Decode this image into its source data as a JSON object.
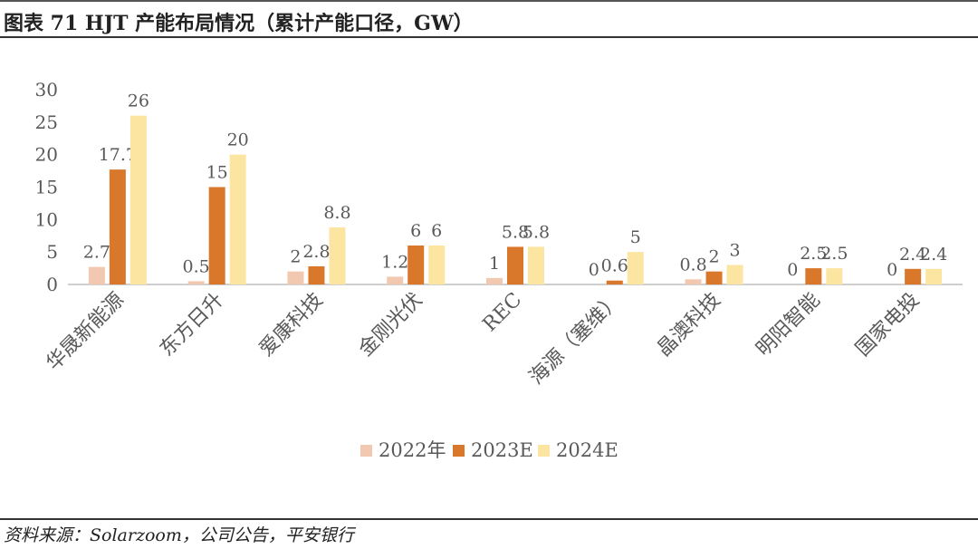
{
  "header": {
    "title": "图表 71    HJT 产能布局情况（累计产能口径，GW）"
  },
  "footer": {
    "source": "资料来源：Solarzoom，公司公告，平安银行"
  },
  "colors": {
    "s2022": "#F2C9B0",
    "s2023E": "#D9772B",
    "s2024E": "#FBE5A0",
    "axis": "#bfbfbf",
    "text": "#595959"
  },
  "chart_data": {
    "type": "bar",
    "title": "HJT 产能布局情况（累计产能口径，GW）",
    "xlabel": "",
    "ylabel": "",
    "ylim": [
      0,
      30
    ],
    "yticks": [
      0,
      5,
      10,
      15,
      20,
      25,
      30
    ],
    "grid": false,
    "legend_position": "bottom",
    "categories": [
      "华晟新能源",
      "东方日升",
      "爱康科技",
      "金刚光伏",
      "REC",
      "海源（塞维）",
      "晶澳科技",
      "明阳智能",
      "国家电投"
    ],
    "series": [
      {
        "name": "2022年",
        "values": [
          2.7,
          0.5,
          2,
          1.2,
          1,
          0,
          0.8,
          0,
          0
        ],
        "labels": [
          "2.7",
          "0.5",
          "2",
          "1.2",
          "1",
          "0",
          "0.8",
          "0",
          "0"
        ]
      },
      {
        "name": "2023E",
        "values": [
          17.7,
          15,
          2.8,
          6,
          5.8,
          0.6,
          2,
          2.5,
          2.4
        ],
        "labels": [
          "17.7",
          "15",
          "2.8",
          "6",
          "5.8",
          "0.6",
          "2",
          "2.5",
          "2.4"
        ]
      },
      {
        "name": "2024E",
        "values": [
          26,
          20,
          8.8,
          6,
          5.8,
          5,
          3,
          2.5,
          2.4
        ],
        "labels": [
          "26",
          "20",
          "8.8",
          "6",
          "5.8",
          "5",
          "3",
          "2.5",
          "2.4"
        ]
      }
    ]
  }
}
